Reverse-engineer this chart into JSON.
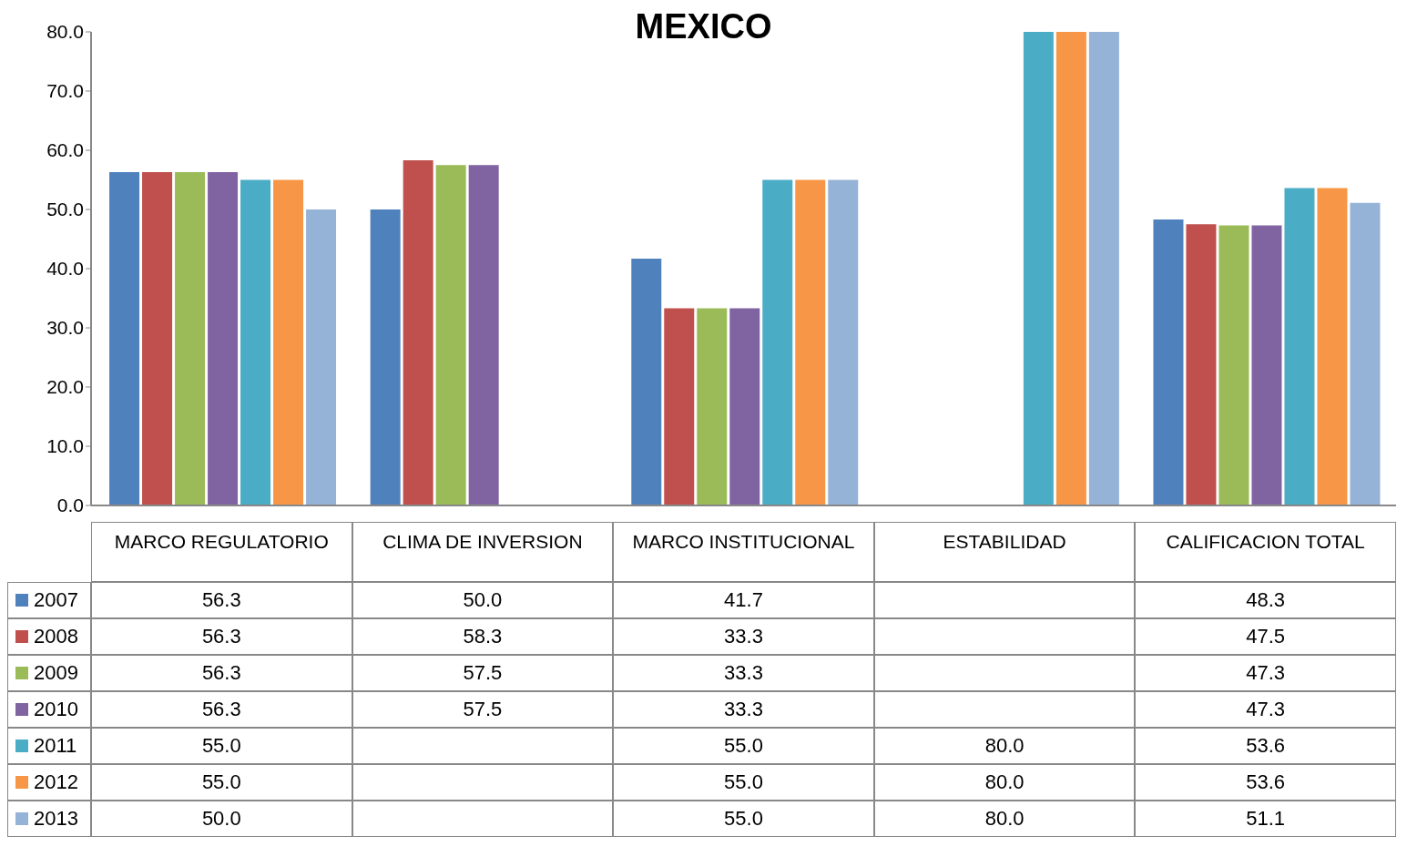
{
  "chart_data": {
    "type": "bar",
    "title": "MEXICO",
    "categories": [
      "MARCO REGULATORIO",
      "CLIMA DE INVERSION",
      "MARCO INSTITUCIONAL",
      "ESTABILIDAD",
      "CALIFICACION TOTAL"
    ],
    "series": [
      {
        "name": "2007",
        "color": "#4f81bd",
        "values": [
          56.3,
          50.0,
          41.7,
          null,
          48.3
        ],
        "value_labels": [
          "56.3",
          "50.0",
          "41.7",
          null,
          "48.3"
        ]
      },
      {
        "name": "2008",
        "color": "#c0504d",
        "values": [
          56.3,
          58.3,
          33.3,
          null,
          47.5
        ],
        "value_labels": [
          "56.3",
          "58.3",
          "33.3",
          null,
          "47.5"
        ]
      },
      {
        "name": "2009",
        "color": "#9bbb59",
        "values": [
          56.3,
          57.5,
          33.3,
          null,
          47.3
        ],
        "value_labels": [
          "56.3",
          "57.5",
          "33.3",
          null,
          "47.3"
        ]
      },
      {
        "name": "2010",
        "color": "#8064a2",
        "values": [
          56.3,
          57.5,
          33.3,
          null,
          47.3
        ],
        "value_labels": [
          "56.3",
          "57.5",
          "33.3",
          null,
          "47.3"
        ]
      },
      {
        "name": "2011",
        "color": "#4bacc6",
        "values": [
          55.0,
          null,
          55.0,
          80.0,
          53.6
        ],
        "value_labels": [
          "55.0",
          null,
          "55.0",
          "80.0",
          "53.6"
        ]
      },
      {
        "name": "2012",
        "color": "#f79646",
        "values": [
          55.0,
          null,
          55.0,
          80.0,
          53.6
        ],
        "value_labels": [
          "55.0",
          null,
          "55.0",
          "80.0",
          "53.6"
        ]
      },
      {
        "name": "2013",
        "color": "#95b3d7",
        "values": [
          50.0,
          null,
          55.0,
          80.0,
          51.1
        ],
        "value_labels": [
          "50.0",
          null,
          "55.0",
          "80.0",
          "51.1"
        ]
      }
    ],
    "ylim": [
      0,
      80
    ],
    "yticks": [
      {
        "value": 0,
        "label": "0.0"
      },
      {
        "value": 10,
        "label": "10.0"
      },
      {
        "value": 20,
        "label": "20.0"
      },
      {
        "value": 30,
        "label": "30.0"
      },
      {
        "value": 40,
        "label": "40.0"
      },
      {
        "value": 50,
        "label": "50.0"
      },
      {
        "value": 60,
        "label": "60.0"
      },
      {
        "value": 70,
        "label": "70.0"
      },
      {
        "value": 80,
        "label": "80.0"
      }
    ],
    "legend": "bottom"
  }
}
